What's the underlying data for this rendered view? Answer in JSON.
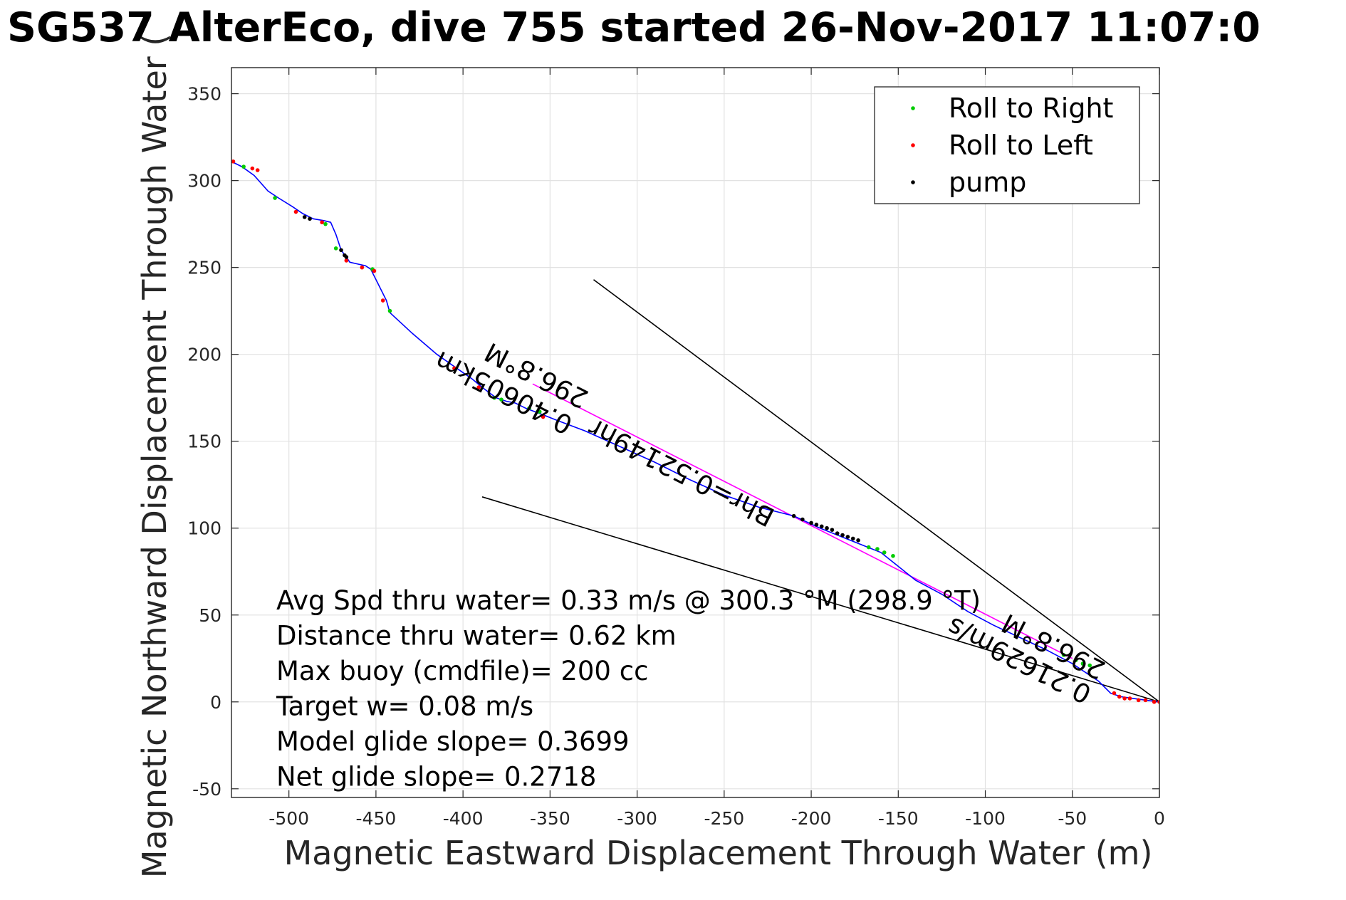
{
  "chart_data": {
    "type": "scatter",
    "title": "SG537 AlterEco, dive 755 started 26-Nov-2017 11:07:0",
    "xlabel": "Magnetic Eastward Displacement Through Water (m)",
    "ylabel": "Magnetic Northward Displacement Through Water (",
    "xlim": [
      -533,
      0
    ],
    "ylim": [
      -55,
      365
    ],
    "xticks": [
      -500,
      -450,
      -400,
      -350,
      -300,
      -250,
      -200,
      -150,
      -100,
      -50,
      0
    ],
    "yticks": [
      -50,
      0,
      50,
      100,
      150,
      200,
      250,
      300,
      350
    ],
    "grid": true,
    "legend_position": "top-right",
    "legend": [
      {
        "label": "Roll to Right",
        "color": "#00cc00"
      },
      {
        "label": "Roll to Left",
        "color": "#ff0000"
      },
      {
        "label": "pump",
        "color": "#000000"
      }
    ],
    "track": {
      "color": "#0000ff",
      "points": [
        [
          -533,
          311
        ],
        [
          -527,
          308
        ],
        [
          -520,
          303
        ],
        [
          -512,
          294
        ],
        [
          -506,
          290
        ],
        [
          -498,
          285
        ],
        [
          -492,
          281
        ],
        [
          -486,
          278
        ],
        [
          -480,
          277
        ],
        [
          -476,
          276
        ],
        [
          -473,
          269
        ],
        [
          -470,
          260
        ],
        [
          -467,
          256
        ],
        [
          -465,
          253
        ],
        [
          -456,
          251
        ],
        [
          -453,
          249
        ],
        [
          -449,
          241
        ],
        [
          -444,
          231
        ],
        [
          -442,
          224
        ],
        [
          -429,
          212
        ],
        [
          -415,
          200
        ],
        [
          -405,
          193
        ],
        [
          -395,
          186
        ],
        [
          -389,
          181
        ],
        [
          -381,
          175
        ],
        [
          -375,
          173
        ],
        [
          -370,
          172
        ],
        [
          -364,
          169
        ],
        [
          -356,
          166
        ],
        [
          -346,
          162
        ],
        [
          -330,
          156
        ],
        [
          -310,
          147
        ],
        [
          -290,
          138
        ],
        [
          -270,
          128
        ],
        [
          -250,
          119
        ],
        [
          -230,
          112
        ],
        [
          -210,
          107
        ],
        [
          -195,
          100
        ],
        [
          -180,
          94
        ],
        [
          -170,
          90
        ],
        [
          -160,
          86
        ],
        [
          -150,
          78
        ],
        [
          -140,
          70
        ],
        [
          -125,
          62
        ],
        [
          -110,
          52
        ],
        [
          -95,
          44
        ],
        [
          -80,
          37
        ],
        [
          -65,
          30
        ],
        [
          -50,
          22
        ],
        [
          -35,
          12
        ],
        [
          -28,
          5
        ],
        [
          -22,
          3
        ],
        [
          -15,
          2
        ],
        [
          -8,
          1
        ],
        [
          0,
          0
        ]
      ]
    },
    "roll_right_points": [
      [
        -526,
        308
      ],
      [
        -508,
        290
      ],
      [
        -479,
        275
      ],
      [
        -473,
        261
      ],
      [
        -452,
        249
      ],
      [
        -442,
        225
      ],
      [
        -382,
        175
      ],
      [
        -378,
        174
      ],
      [
        -362,
        169
      ],
      [
        -356,
        167
      ],
      [
        -167,
        89
      ],
      [
        -162,
        88
      ],
      [
        -158,
        86
      ],
      [
        -153,
        84
      ],
      [
        -55,
        27
      ],
      [
        -48,
        24
      ],
      [
        -44,
        22
      ],
      [
        -40,
        21
      ]
    ],
    "roll_left_points": [
      [
        -532,
        311
      ],
      [
        -521,
        307
      ],
      [
        -518,
        306
      ],
      [
        -496,
        282
      ],
      [
        -481,
        276
      ],
      [
        -467,
        254
      ],
      [
        -458,
        250
      ],
      [
        -451,
        248
      ],
      [
        -446,
        231
      ],
      [
        -405,
        192
      ],
      [
        -391,
        181
      ],
      [
        -354,
        164
      ],
      [
        -26,
        5
      ],
      [
        -23,
        3
      ],
      [
        -20,
        2
      ],
      [
        -17,
        2
      ],
      [
        -12,
        1
      ],
      [
        -8,
        1
      ],
      [
        -3,
        0
      ],
      [
        0,
        0
      ]
    ],
    "pump_points": [
      [
        -491,
        279
      ],
      [
        -488,
        278
      ],
      [
        -470,
        260
      ],
      [
        -468,
        257
      ],
      [
        -467,
        256
      ],
      [
        -210,
        107
      ],
      [
        -205,
        105
      ],
      [
        -200,
        103
      ],
      [
        -197,
        102
      ],
      [
        -194,
        101
      ],
      [
        -191,
        100
      ],
      [
        -188,
        99
      ],
      [
        -185,
        97
      ],
      [
        -182,
        96
      ],
      [
        -179,
        95
      ],
      [
        -176,
        94
      ],
      [
        -173,
        93
      ]
    ],
    "magenta_line": [
      [
        -360,
        183
      ],
      [
        -50,
        25
      ]
    ],
    "black_lines": [
      [
        [
          -325,
          243
        ],
        [
          0,
          0
        ]
      ],
      [
        [
          -389,
          118
        ],
        [
          0,
          0
        ]
      ]
    ],
    "line_annotations": [
      {
        "text": "0.40605km",
        "x": -336,
        "y": 163,
        "angle": 207
      },
      {
        "text": "296.8°M",
        "x": -327,
        "y": 178,
        "angle": 207
      },
      {
        "text": "Bhr=0.52149hr",
        "x": -220,
        "y": 110,
        "angle": 207
      },
      {
        "text": "0.21629m/s",
        "x": -38,
        "y": 8,
        "angle": 207
      },
      {
        "text": "296.8°M",
        "x": -30,
        "y": 22,
        "angle": 207
      }
    ],
    "stats": [
      "Avg Spd thru water=  0.33 m/s @ 300.3  °M (298.9 °T)",
      "Distance thru water=  0.62 km",
      "Max buoy (cmdfile)= 200 cc",
      "Target w= 0.08 m/s",
      "Model glide slope= 0.3699",
      "Net glide slope= 0.2718"
    ]
  }
}
